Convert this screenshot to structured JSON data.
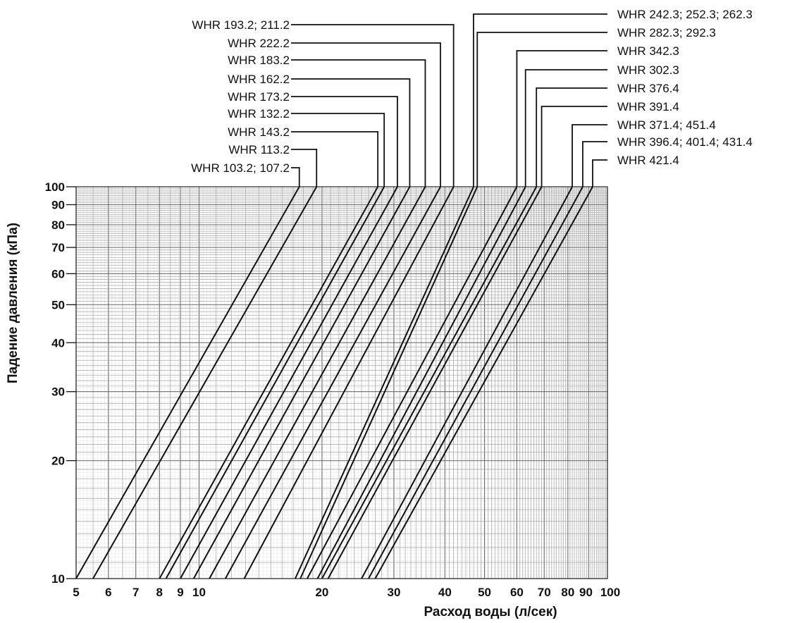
{
  "chart_data": {
    "type": "line",
    "xlabel": "Расход воды (л/сек)",
    "ylabel": "Падение давления (кПа)",
    "x_scale": "log",
    "y_scale": "log",
    "xlim": [
      5,
      100
    ],
    "ylim": [
      10,
      100
    ],
    "grid": true,
    "x_ticks": [
      5,
      6,
      7,
      8,
      9,
      10,
      20,
      30,
      40,
      50,
      60,
      70,
      80,
      90,
      100
    ],
    "y_ticks": [
      10,
      20,
      30,
      40,
      50,
      60,
      70,
      80,
      90,
      100
    ],
    "series": [
      {
        "name": "WHR 103.2; 107.2",
        "x": [
          5.0,
          17.6
        ],
        "y": [
          10,
          100
        ]
      },
      {
        "name": "WHR 113.2",
        "x": [
          5.5,
          19.4
        ],
        "y": [
          10,
          100
        ]
      },
      {
        "name": "WHR 143.2",
        "x": [
          8.0,
          27.4
        ],
        "y": [
          10,
          100
        ]
      },
      {
        "name": "WHR 132.2",
        "x": [
          8.3,
          28.4
        ],
        "y": [
          10,
          100
        ]
      },
      {
        "name": "WHR 173.2",
        "x": [
          9.0,
          30.6
        ],
        "y": [
          10,
          100
        ]
      },
      {
        "name": "WHR 162.2",
        "x": [
          9.7,
          32.8
        ],
        "y": [
          10,
          100
        ]
      },
      {
        "name": "WHR 183.2",
        "x": [
          10.6,
          35.8
        ],
        "y": [
          10,
          100
        ]
      },
      {
        "name": "WHR 222.2",
        "x": [
          11.6,
          39.0
        ],
        "y": [
          10,
          100
        ]
      },
      {
        "name": "WHR 193.2; 211.2",
        "x": [
          12.9,
          42.0
        ],
        "y": [
          10,
          100
        ]
      },
      {
        "name": "WHR 242.3; 252.3; 262.3",
        "x": [
          17.2,
          47.0
        ],
        "y": [
          10,
          100
        ]
      },
      {
        "name": "WHR 282.3; 292.3",
        "x": [
          17.7,
          48.0
        ],
        "y": [
          10,
          100
        ]
      },
      {
        "name": "WHR 342.3",
        "x": [
          18.4,
          60.0
        ],
        "y": [
          10,
          100
        ]
      },
      {
        "name": "WHR 302.3",
        "x": [
          19.5,
          63.0
        ],
        "y": [
          10,
          100
        ]
      },
      {
        "name": "WHR 376.4",
        "x": [
          20.0,
          67.0
        ],
        "y": [
          10,
          100
        ]
      },
      {
        "name": "WHR 391.4",
        "x": [
          20.7,
          69.0
        ],
        "y": [
          10,
          100
        ]
      },
      {
        "name": "WHR 371.4; 451.4",
        "x": [
          25.0,
          82.0
        ],
        "y": [
          10,
          100
        ]
      },
      {
        "name": "WHR 396.4; 401.4; 431.4",
        "x": [
          26.0,
          87.0
        ],
        "y": [
          10,
          100
        ]
      },
      {
        "name": "WHR 421.4",
        "x": [
          27.0,
          92.0
        ],
        "y": [
          10,
          100
        ]
      }
    ]
  }
}
